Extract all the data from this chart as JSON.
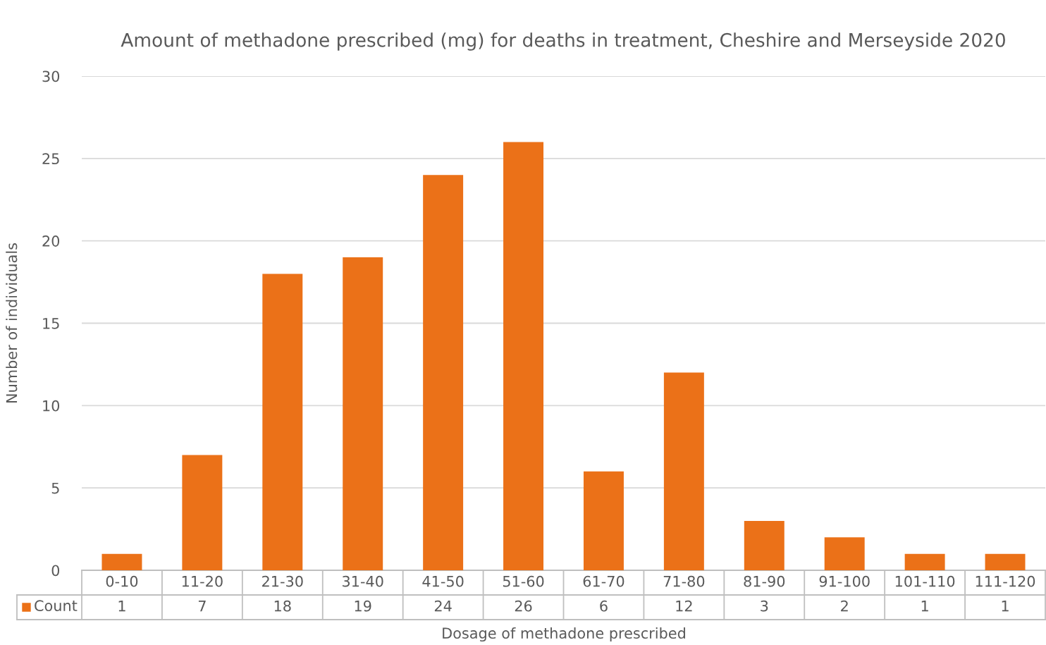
{
  "chart_data": {
    "type": "bar",
    "title": "Amount of methadone prescribed (mg) for deaths in treatment, Cheshire and Merseyside 2020",
    "xlabel": "Dosage of methadone prescribed",
    "ylabel": "Number of individuals",
    "categories": [
      "0-10",
      "11-20",
      "21-30",
      "31-40",
      "41-50",
      "51-60",
      "61-70",
      "71-80",
      "81-90",
      "91-100",
      "101-110",
      "111-120"
    ],
    "series": [
      {
        "name": "Count",
        "color": "#eb7118",
        "values": [
          1,
          7,
          18,
          19,
          24,
          26,
          6,
          12,
          3,
          2,
          1,
          1
        ]
      }
    ],
    "ylim": [
      0,
      30
    ],
    "yticks": [
      0,
      5,
      10,
      15,
      20,
      25,
      30
    ],
    "grid": "y",
    "data_labels": true,
    "legend": "bottom"
  }
}
